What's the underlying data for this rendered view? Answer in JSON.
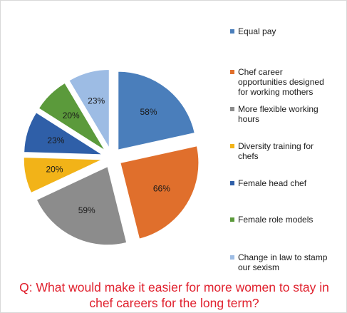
{
  "chart_data": {
    "type": "pie",
    "exploded": true,
    "title": "",
    "series": [
      {
        "values": [
          58,
          66,
          59,
          20,
          23,
          20,
          23
        ],
        "labels": [
          "58%",
          "66%",
          "59%",
          "20%",
          "23%",
          "20%",
          "23%"
        ]
      }
    ],
    "categories": [
      "Equal pay",
      "Chef career opportunities designed for working mothers",
      "More flexible working hours",
      "Diversity training for chefs",
      "Female head chef",
      "Female role models",
      "Change in law to stamp our sexism"
    ],
    "colors": [
      "#4a7ebb",
      "#e06f2c",
      "#8c8c8c",
      "#f2b318",
      "#2f5fa8",
      "#5b9a3b",
      "#9dbce4"
    ],
    "legend_position": "right",
    "legend": [
      {
        "lines": [
          "Equal pay"
        ],
        "color": "#4a7ebb"
      },
      {
        "lines": [
          "Chef career",
          "opportunities designed",
          "for working mothers"
        ],
        "color": "#e06f2c"
      },
      {
        "lines": [
          "More flexible working",
          "hours"
        ],
        "color": "#8c8c8c"
      },
      {
        "lines": [
          "Diversity training for",
          "chefs"
        ],
        "color": "#f2b318"
      },
      {
        "lines": [
          "Female head chef"
        ],
        "color": "#2f5fa8"
      },
      {
        "lines": [
          "Female role models"
        ],
        "color": "#5b9a3b"
      },
      {
        "lines": [
          "Change in law to stamp",
          "our sexism"
        ],
        "color": "#9dbce4"
      }
    ]
  },
  "question": {
    "line1": "Q: What would make it easier for more women to stay in",
    "line2": "chef careers for the long term?",
    "color": "#e0202d"
  }
}
